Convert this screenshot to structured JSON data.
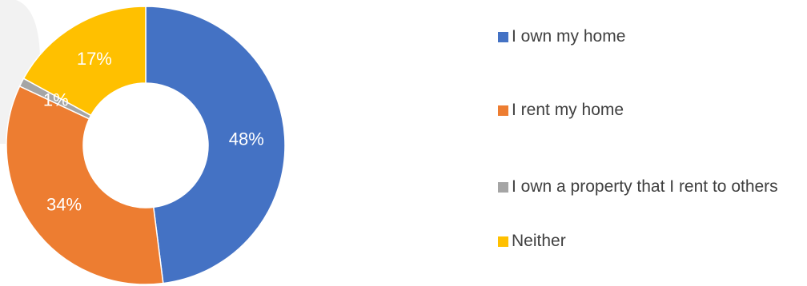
{
  "chart_data": {
    "type": "donut",
    "title": "",
    "categories": [
      "I own my home",
      "I rent my home",
      "I own a property that I rent to others",
      "Neither"
    ],
    "values": [
      48,
      34,
      1,
      17
    ],
    "labels": [
      "48%",
      "34%",
      "1%",
      "17%"
    ],
    "colors": [
      "#4472C4",
      "#ED7D31",
      "#A5A5A5",
      "#FFC000"
    ],
    "label_colors": [
      "#ffffff",
      "#ffffff",
      "#ffffff",
      "#ffffff"
    ],
    "legend_position": "right"
  }
}
